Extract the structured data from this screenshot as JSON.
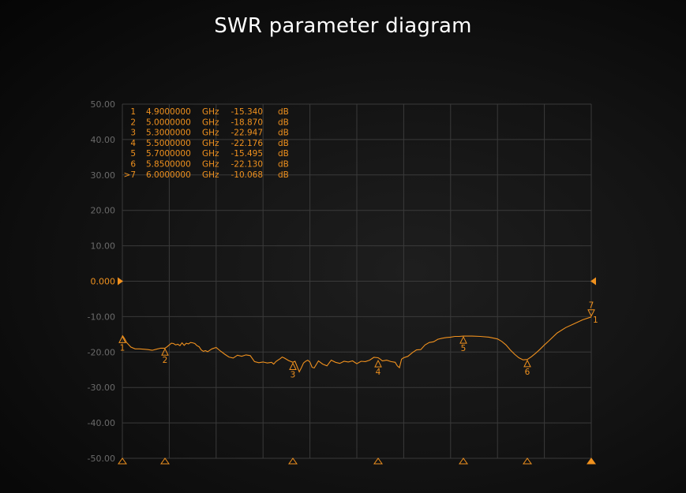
{
  "title": "SWR parameter diagram",
  "colors": {
    "trace": "#f0911e",
    "grid": "#3a3a3a",
    "axis_text": "#6a6a6a",
    "background": "#111111"
  },
  "chart_data": {
    "type": "line",
    "title": "SWR parameter diagram",
    "xlabel": "",
    "ylabel": "",
    "x_unit": "GHz",
    "y_unit": "dB",
    "xlim": [
      4.9,
      6.0
    ],
    "ylim": [
      -50,
      50
    ],
    "grid": true,
    "y_ticks": [
      "50.00",
      "40.00",
      "30.00",
      "20.00",
      "10.00",
      "0.000",
      "-10.00",
      "-20.00",
      "-30.00",
      "-40.00",
      "-50.00"
    ],
    "reference_level": 0,
    "markers": [
      {
        "id": "1",
        "prefix": "",
        "freq": "4.9000000",
        "unit": "GHz",
        "value": "-15.340",
        "db": "dB",
        "x": 4.9,
        "y": -15.34
      },
      {
        "id": "2",
        "prefix": "",
        "freq": "5.0000000",
        "unit": "GHz",
        "value": "-18.870",
        "db": "dB",
        "x": 5.0,
        "y": -18.87
      },
      {
        "id": "3",
        "prefix": "",
        "freq": "5.3000000",
        "unit": "GHz",
        "value": "-22.947",
        "db": "dB",
        "x": 5.3,
        "y": -22.947
      },
      {
        "id": "4",
        "prefix": "",
        "freq": "5.5000000",
        "unit": "GHz",
        "value": "-22.176",
        "db": "dB",
        "x": 5.5,
        "y": -22.176
      },
      {
        "id": "5",
        "prefix": "",
        "freq": "5.7000000",
        "unit": "GHz",
        "value": "-15.495",
        "db": "dB",
        "x": 5.7,
        "y": -15.495
      },
      {
        "id": "6",
        "prefix": "",
        "freq": "5.8500000",
        "unit": "GHz",
        "value": "-22.130",
        "db": "dB",
        "x": 5.85,
        "y": -22.13
      },
      {
        "id": "7",
        "prefix": ">",
        "freq": "6.0000000",
        "unit": "GHz",
        "value": "-10.068",
        "db": "dB",
        "x": 6.0,
        "y": -10.068
      }
    ],
    "series": [
      {
        "x": [
          4.9,
          4.905,
          4.91,
          4.92,
          4.93,
          4.94,
          4.95,
          4.96,
          4.97,
          4.98,
          4.99,
          5.0,
          5.005,
          5.01,
          5.015,
          5.02,
          5.025,
          5.03,
          5.035,
          5.04,
          5.045,
          5.05,
          5.055,
          5.06,
          5.065,
          5.07,
          5.075,
          5.08,
          5.085,
          5.09,
          5.095,
          5.1,
          5.105,
          5.11,
          5.12,
          5.13,
          5.14,
          5.15,
          5.16,
          5.17,
          5.18,
          5.19,
          5.2,
          5.21,
          5.22,
          5.23,
          5.24,
          5.25,
          5.255,
          5.26,
          5.265,
          5.27,
          5.275,
          5.28,
          5.29,
          5.3,
          5.305,
          5.31,
          5.315,
          5.32,
          5.325,
          5.33,
          5.335,
          5.34,
          5.345,
          5.35,
          5.36,
          5.37,
          5.38,
          5.39,
          5.4,
          5.41,
          5.42,
          5.43,
          5.44,
          5.45,
          5.46,
          5.47,
          5.48,
          5.49,
          5.5,
          5.505,
          5.51,
          5.515,
          5.52,
          5.53,
          5.54,
          5.545,
          5.55,
          5.555,
          5.56,
          5.57,
          5.58,
          5.59,
          5.6,
          5.61,
          5.62,
          5.63,
          5.64,
          5.65,
          5.66,
          5.67,
          5.68,
          5.69,
          5.7,
          5.72,
          5.74,
          5.76,
          5.78,
          5.79,
          5.8,
          5.81,
          5.82,
          5.83,
          5.84,
          5.85,
          5.86,
          5.87,
          5.88,
          5.89,
          5.9,
          5.92,
          5.94,
          5.96,
          5.98,
          6.0
        ],
        "y": [
          -15.3,
          -16.2,
          -17.3,
          -18.6,
          -19.1,
          -19.1,
          -19.2,
          -19.3,
          -19.5,
          -19.2,
          -18.9,
          -18.9,
          -18.5,
          -18.0,
          -17.5,
          -17.6,
          -18.0,
          -17.8,
          -18.2,
          -17.4,
          -18.1,
          -17.5,
          -17.7,
          -17.3,
          -17.4,
          -17.6,
          -18.2,
          -18.5,
          -19.4,
          -19.8,
          -19.6,
          -19.9,
          -19.5,
          -19.1,
          -18.7,
          -19.7,
          -20.6,
          -21.4,
          -21.7,
          -20.9,
          -21.2,
          -20.8,
          -21.0,
          -22.7,
          -23.0,
          -22.8,
          -23.1,
          -22.9,
          -23.4,
          -22.7,
          -22.3,
          -21.9,
          -21.4,
          -21.7,
          -22.4,
          -22.9,
          -22.6,
          -24.1,
          -25.6,
          -24.4,
          -23.1,
          -22.6,
          -22.3,
          -22.8,
          -24.3,
          -24.5,
          -22.5,
          -23.4,
          -23.9,
          -22.3,
          -22.9,
          -23.2,
          -22.6,
          -22.8,
          -22.5,
          -23.3,
          -22.6,
          -22.7,
          -22.3,
          -21.5,
          -21.6,
          -22.0,
          -22.5,
          -22.4,
          -22.3,
          -22.7,
          -22.9,
          -23.9,
          -24.4,
          -22.0,
          -21.6,
          -21.2,
          -20.2,
          -19.4,
          -19.3,
          -18.0,
          -17.3,
          -17.1,
          -16.4,
          -16.1,
          -15.9,
          -15.8,
          -15.6,
          -15.6,
          -15.5,
          -15.5,
          -15.6,
          -15.8,
          -16.3,
          -17.0,
          -18.0,
          -19.4,
          -20.6,
          -21.6,
          -22.2,
          -22.1,
          -21.3,
          -20.3,
          -19.2,
          -18.0,
          -16.9,
          -14.6,
          -13.1,
          -12.0,
          -10.9,
          -10.1
        ]
      }
    ]
  }
}
